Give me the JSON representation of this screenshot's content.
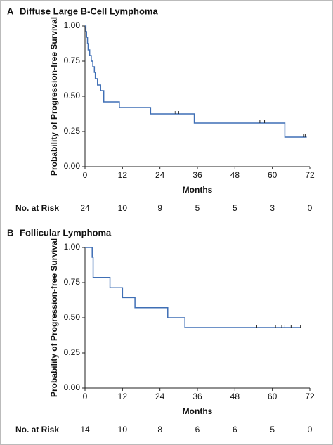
{
  "chart_data": [
    {
      "type": "step",
      "panel": "A",
      "title": "Diffuse Large B-Cell Lymphoma",
      "x_label": "Months",
      "y_label": "Probability of Progression-free Survival",
      "color": "#3f6fb5",
      "x": [
        0,
        0.3,
        0.5,
        0.8,
        1,
        1.5,
        2,
        2.5,
        3,
        3.3,
        4,
        5,
        6,
        11,
        21,
        35,
        64,
        71
      ],
      "values": [
        1,
        0.96,
        0.92,
        0.875,
        0.83,
        0.79,
        0.75,
        0.71,
        0.67,
        0.625,
        0.58,
        0.54,
        0.46,
        0.42,
        0.375,
        0.31,
        0.21,
        0.21
      ],
      "censor_x": [
        28.5,
        29,
        30,
        56,
        57.5,
        70,
        70.5
      ],
      "censor_values": [
        0.375,
        0.375,
        0.375,
        0.31,
        0.31,
        0.21,
        0.21
      ],
      "xlim": [
        0,
        72
      ],
      "xticks": [
        0,
        12,
        24,
        36,
        48,
        60,
        72
      ],
      "ylim": [
        0,
        1
      ],
      "yticks": [
        {
          "value": 0,
          "label": "0.00"
        },
        {
          "value": 0.25,
          "label": "0.25"
        },
        {
          "value": 0.5,
          "label": "0.50"
        },
        {
          "value": 0.75,
          "label": "0.75"
        },
        {
          "value": 1,
          "label": "1.00"
        }
      ],
      "risk_label": "No. at Risk",
      "at_risk": [
        24,
        10,
        9,
        5,
        5,
        3,
        0
      ]
    },
    {
      "type": "step",
      "panel": "B",
      "title": "Follicular Lymphoma",
      "x_label": "Months",
      "y_label": "Probability of Progression-free Survival",
      "color": "#3f6fb5",
      "x": [
        0,
        2.3,
        2.6,
        8,
        12,
        16,
        26.5,
        32,
        69
      ],
      "values": [
        1,
        0.93,
        0.786,
        0.714,
        0.643,
        0.571,
        0.5,
        0.43,
        0.43
      ],
      "censor_x": [
        55,
        61,
        63,
        64,
        66,
        69
      ],
      "censor_values": [
        0.43,
        0.43,
        0.43,
        0.43,
        0.43,
        0.43
      ],
      "xlim": [
        0,
        72
      ],
      "xticks": [
        0,
        12,
        24,
        36,
        48,
        60,
        72
      ],
      "ylim": [
        0,
        1
      ],
      "yticks": [
        {
          "value": 0,
          "label": "0.00"
        },
        {
          "value": 0.25,
          "label": "0.25"
        },
        {
          "value": 0.5,
          "label": "0.50"
        },
        {
          "value": 0.75,
          "label": "0.75"
        },
        {
          "value": 1,
          "label": "1.00"
        }
      ],
      "risk_label": "No. at Risk",
      "at_risk": [
        14,
        10,
        8,
        6,
        6,
        5,
        0
      ]
    }
  ]
}
